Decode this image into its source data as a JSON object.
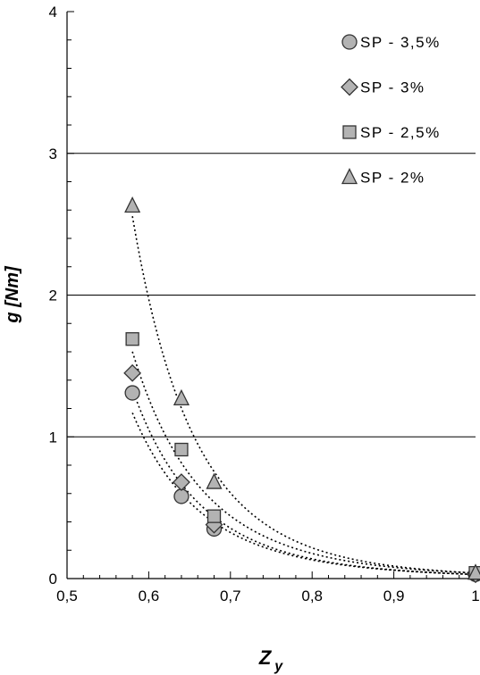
{
  "chart_data": {
    "type": "scatter",
    "xlabel": "Z",
    "xlabel_sub": "y",
    "ylabel": "g [Nm]",
    "xlim": [
      0.5,
      1.0
    ],
    "ylim": [
      0,
      4
    ],
    "x_ticks": [
      {
        "value": 0.5,
        "label": "0,5"
      },
      {
        "value": 0.6,
        "label": "0,6"
      },
      {
        "value": 0.7,
        "label": "0,7"
      },
      {
        "value": 0.8,
        "label": "0,8"
      },
      {
        "value": 0.9,
        "label": "0,9"
      },
      {
        "value": 1.0,
        "label": "1"
      }
    ],
    "y_ticks": [
      {
        "value": 0,
        "label": "0"
      },
      {
        "value": 1,
        "label": "1"
      },
      {
        "value": 2,
        "label": "2"
      },
      {
        "value": 3,
        "label": "3"
      },
      {
        "value": 4,
        "label": "4"
      }
    ],
    "y_minor_step": 0.2,
    "x_minor_step": 0.02,
    "gridlines_y": [
      1,
      2,
      3
    ],
    "legend_position": "top-right",
    "trendline_style": "dotted",
    "series": [
      {
        "name": "SP - 3,5%",
        "marker": "circle",
        "x": [
          0.58,
          0.64,
          0.68,
          1.0
        ],
        "y": [
          1.31,
          0.58,
          0.35,
          0.03
        ]
      },
      {
        "name": "SP - 3%",
        "marker": "diamond",
        "x": [
          0.58,
          0.64,
          0.68,
          1.0
        ],
        "y": [
          1.45,
          0.68,
          0.38,
          0.03
        ]
      },
      {
        "name": "SP - 2,5%",
        "marker": "square",
        "x": [
          0.58,
          0.64,
          0.68,
          1.0
        ],
        "y": [
          1.69,
          0.91,
          0.44,
          0.04
        ]
      },
      {
        "name": "SP - 2%",
        "marker": "triangle",
        "x": [
          0.58,
          0.64,
          0.68,
          1.0
        ],
        "y": [
          2.63,
          1.27,
          0.68,
          0.04
        ]
      }
    ],
    "colors": {
      "marker_fill": "#b3b3b3",
      "marker_stroke": "#333333",
      "axis": "#000000",
      "grid": "#000000"
    }
  }
}
